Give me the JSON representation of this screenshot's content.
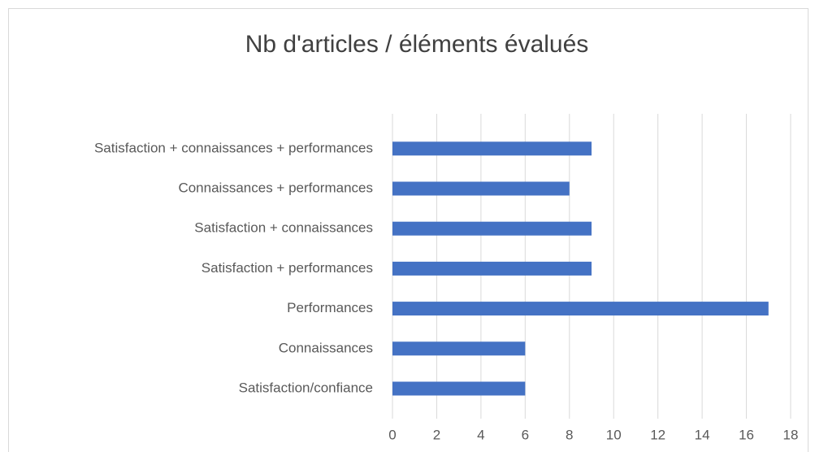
{
  "chart_data": {
    "type": "bar",
    "orientation": "horizontal",
    "title": "Nb d'articles / éléments évalués",
    "categories": [
      "Satisfaction/confiance",
      "Connaissances",
      "Performances",
      "Satisfaction + performances",
      "Satisfaction + connaissances",
      "Connaissances + performances",
      "Satisfaction + connaissances + performances"
    ],
    "values": [
      6,
      6,
      17,
      9,
      9,
      8,
      9
    ],
    "color": "#4472c4",
    "xlim": [
      0,
      18
    ],
    "xticks": [
      0,
      2,
      4,
      6,
      8,
      10,
      12,
      14,
      16,
      18
    ],
    "grid": true
  }
}
